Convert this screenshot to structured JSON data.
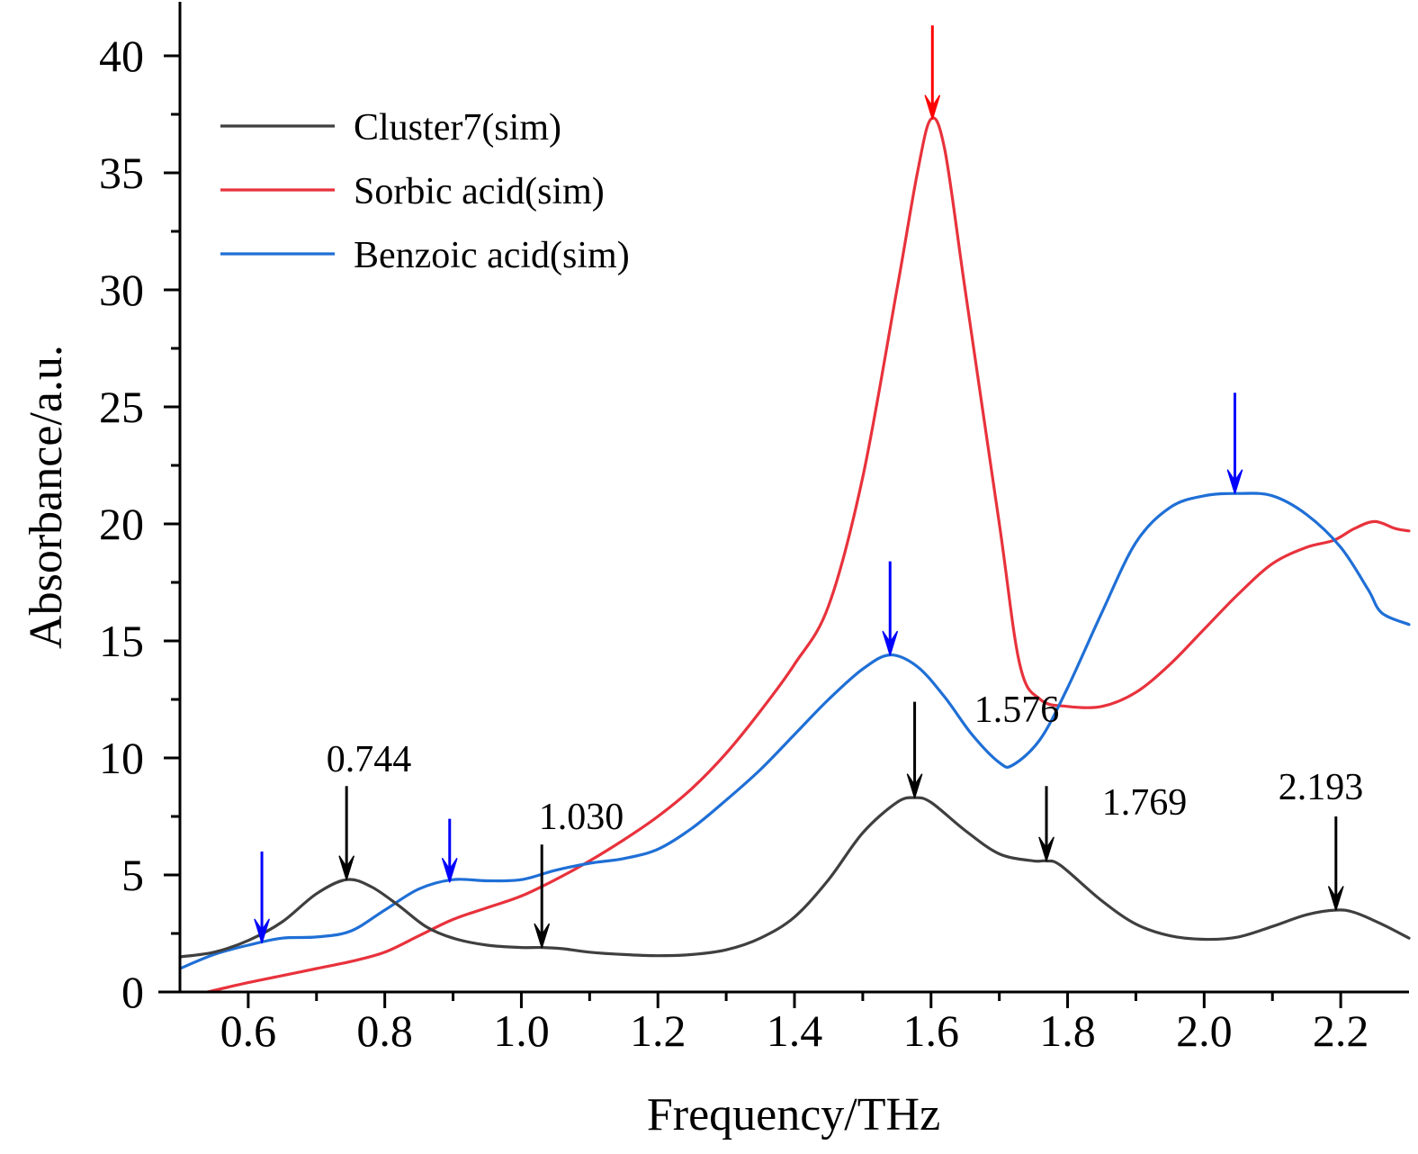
{
  "chart_data": {
    "type": "line",
    "xlabel": "Frequency/THz",
    "ylabel": "Absorbance/a.u.",
    "xlim": [
      0.5,
      2.3
    ],
    "ylim": [
      0,
      42
    ],
    "xticks": [
      0.6,
      0.8,
      1.0,
      1.2,
      1.4,
      1.6,
      1.8,
      2.0,
      2.2
    ],
    "xtick_labels": [
      "0.6",
      "0.8",
      "1.0",
      "1.2",
      "1.4",
      "1.6",
      "1.8",
      "2.0",
      "2.2"
    ],
    "yticks": [
      0,
      5,
      10,
      15,
      20,
      25,
      30,
      35,
      40
    ],
    "ytick_labels": [
      "0",
      "5",
      "10",
      "15",
      "20",
      "25",
      "30",
      "35",
      "40"
    ],
    "legend_position": "top-left",
    "grid": false,
    "series": [
      {
        "name": "Cluster7(sim)",
        "color": "#3f3f3f",
        "points": [
          [
            0.5,
            1.5
          ],
          [
            0.55,
            1.7
          ],
          [
            0.6,
            2.2
          ],
          [
            0.65,
            3.0
          ],
          [
            0.7,
            4.2
          ],
          [
            0.744,
            4.8
          ],
          [
            0.78,
            4.5
          ],
          [
            0.82,
            3.7
          ],
          [
            0.86,
            2.8
          ],
          [
            0.9,
            2.3
          ],
          [
            0.95,
            2.0
          ],
          [
            1.0,
            1.9
          ],
          [
            1.03,
            1.9
          ],
          [
            1.06,
            1.85
          ],
          [
            1.1,
            1.7
          ],
          [
            1.15,
            1.6
          ],
          [
            1.2,
            1.55
          ],
          [
            1.25,
            1.6
          ],
          [
            1.3,
            1.8
          ],
          [
            1.35,
            2.3
          ],
          [
            1.4,
            3.2
          ],
          [
            1.45,
            4.8
          ],
          [
            1.5,
            6.8
          ],
          [
            1.55,
            8.1
          ],
          [
            1.576,
            8.3
          ],
          [
            1.6,
            8.1
          ],
          [
            1.65,
            6.9
          ],
          [
            1.7,
            5.9
          ],
          [
            1.75,
            5.6
          ],
          [
            1.769,
            5.6
          ],
          [
            1.79,
            5.4
          ],
          [
            1.85,
            3.9
          ],
          [
            1.9,
            2.9
          ],
          [
            1.95,
            2.4
          ],
          [
            2.0,
            2.25
          ],
          [
            2.05,
            2.35
          ],
          [
            2.1,
            2.8
          ],
          [
            2.15,
            3.3
          ],
          [
            2.193,
            3.5
          ],
          [
            2.22,
            3.4
          ],
          [
            2.26,
            2.9
          ],
          [
            2.3,
            2.3
          ]
        ]
      },
      {
        "name": "Sorbic acid(sim)",
        "color": "#e8323c",
        "points": [
          [
            0.54,
            0.0
          ],
          [
            0.6,
            0.4
          ],
          [
            0.65,
            0.7
          ],
          [
            0.7,
            1.0
          ],
          [
            0.75,
            1.3
          ],
          [
            0.8,
            1.7
          ],
          [
            0.85,
            2.4
          ],
          [
            0.9,
            3.1
          ],
          [
            0.95,
            3.6
          ],
          [
            1.0,
            4.1
          ],
          [
            1.05,
            4.8
          ],
          [
            1.1,
            5.6
          ],
          [
            1.15,
            6.5
          ],
          [
            1.2,
            7.5
          ],
          [
            1.25,
            8.7
          ],
          [
            1.3,
            10.2
          ],
          [
            1.35,
            12.0
          ],
          [
            1.4,
            14.0
          ],
          [
            1.45,
            16.5
          ],
          [
            1.5,
            22.0
          ],
          [
            1.55,
            30.0
          ],
          [
            1.58,
            35.0
          ],
          [
            1.6,
            37.3
          ],
          [
            1.62,
            36.0
          ],
          [
            1.65,
            30.0
          ],
          [
            1.7,
            20.0
          ],
          [
            1.73,
            14.0
          ],
          [
            1.76,
            12.5
          ],
          [
            1.8,
            12.2
          ],
          [
            1.85,
            12.2
          ],
          [
            1.9,
            12.8
          ],
          [
            1.95,
            14.0
          ],
          [
            2.0,
            15.5
          ],
          [
            2.05,
            17.0
          ],
          [
            2.1,
            18.3
          ],
          [
            2.15,
            19.0
          ],
          [
            2.19,
            19.3
          ],
          [
            2.22,
            19.8
          ],
          [
            2.25,
            20.1
          ],
          [
            2.28,
            19.8
          ],
          [
            2.3,
            19.7
          ]
        ]
      },
      {
        "name": "Benzoic acid(sim)",
        "color": "#1f6fd6",
        "points": [
          [
            0.5,
            1.0
          ],
          [
            0.55,
            1.6
          ],
          [
            0.6,
            2.0
          ],
          [
            0.65,
            2.3
          ],
          [
            0.7,
            2.35
          ],
          [
            0.75,
            2.6
          ],
          [
            0.8,
            3.5
          ],
          [
            0.85,
            4.4
          ],
          [
            0.9,
            4.8
          ],
          [
            0.95,
            4.75
          ],
          [
            1.0,
            4.8
          ],
          [
            1.05,
            5.2
          ],
          [
            1.1,
            5.5
          ],
          [
            1.15,
            5.7
          ],
          [
            1.2,
            6.1
          ],
          [
            1.25,
            7.0
          ],
          [
            1.3,
            8.2
          ],
          [
            1.35,
            9.5
          ],
          [
            1.4,
            11.0
          ],
          [
            1.45,
            12.5
          ],
          [
            1.5,
            13.8
          ],
          [
            1.54,
            14.4
          ],
          [
            1.58,
            13.9
          ],
          [
            1.62,
            12.6
          ],
          [
            1.66,
            11.0
          ],
          [
            1.7,
            9.8
          ],
          [
            1.72,
            9.7
          ],
          [
            1.76,
            10.8
          ],
          [
            1.8,
            13.0
          ],
          [
            1.85,
            16.2
          ],
          [
            1.9,
            19.2
          ],
          [
            1.95,
            20.7
          ],
          [
            2.0,
            21.2
          ],
          [
            2.05,
            21.3
          ],
          [
            2.1,
            21.2
          ],
          [
            2.15,
            20.4
          ],
          [
            2.2,
            19.0
          ],
          [
            2.24,
            17.2
          ],
          [
            2.26,
            16.2
          ],
          [
            2.3,
            15.7
          ]
        ]
      }
    ],
    "peak_labels": [
      {
        "x": 0.744,
        "text": "0.744"
      },
      {
        "x": 1.03,
        "text": "1.030"
      },
      {
        "x": 1.576,
        "text": "1.576"
      },
      {
        "x": 1.769,
        "text": "1.769"
      },
      {
        "x": 2.193,
        "text": "2.193"
      }
    ],
    "arrows": [
      {
        "color": "#000000",
        "x": 0.744,
        "y_from": 8.8,
        "y_to": 4.8
      },
      {
        "color": "#000000",
        "x": 1.03,
        "y_from": 6.3,
        "y_to": 1.9
      },
      {
        "color": "#000000",
        "x": 1.576,
        "y_from": 12.4,
        "y_to": 8.3
      },
      {
        "color": "#000000",
        "x": 1.769,
        "y_from": 8.8,
        "y_to": 5.6
      },
      {
        "color": "#000000",
        "x": 2.193,
        "y_from": 7.5,
        "y_to": 3.5
      },
      {
        "color": "#0000ff",
        "x": 0.62,
        "y_from": 6.0,
        "y_to": 2.1
      },
      {
        "color": "#0000ff",
        "x": 0.895,
        "y_from": 7.4,
        "y_to": 4.7
      },
      {
        "color": "#0000ff",
        "x": 1.54,
        "y_from": 18.4,
        "y_to": 14.4
      },
      {
        "color": "#0000ff",
        "x": 2.045,
        "y_from": 25.6,
        "y_to": 21.3
      },
      {
        "color": "#ff0000",
        "x": 1.602,
        "y_from": 41.3,
        "y_to": 37.3
      }
    ]
  }
}
